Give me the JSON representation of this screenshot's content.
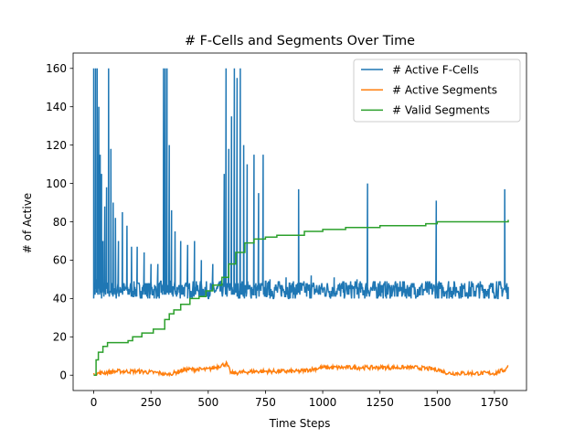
{
  "chart_data": {
    "type": "line",
    "title": "# F-Cells and Segments Over Time",
    "xlabel": "Time Steps",
    "ylabel": "# of Active",
    "xlim": [
      -90,
      1890
    ],
    "ylim": [
      -8,
      168
    ],
    "xticks": [
      0,
      250,
      500,
      750,
      1000,
      1250,
      1500,
      1750
    ],
    "yticks": [
      0,
      20,
      40,
      60,
      80,
      100,
      120,
      140,
      160
    ],
    "legend_position": "top-right",
    "grid": false,
    "series": [
      {
        "name": "# Active F-Cells",
        "color": "#1f77b4",
        "style": "dense oscillating band between 40 and 49 with frequent spikes",
        "base_range": [
          40,
          49
        ],
        "spikes": [
          [
            0,
            160
          ],
          [
            5,
            45
          ],
          [
            8,
            160
          ],
          [
            12,
            50
          ],
          [
            15,
            160
          ],
          [
            18,
            42
          ],
          [
            22,
            140
          ],
          [
            25,
            45
          ],
          [
            28,
            115
          ],
          [
            31,
            44
          ],
          [
            34,
            105
          ],
          [
            37,
            43
          ],
          [
            40,
            70
          ],
          [
            44,
            48
          ],
          [
            48,
            88
          ],
          [
            52,
            42
          ],
          [
            56,
            98
          ],
          [
            60,
            46
          ],
          [
            65,
            160
          ],
          [
            70,
            44
          ],
          [
            75,
            118
          ],
          [
            80,
            42
          ],
          [
            85,
            90
          ],
          [
            90,
            45
          ],
          [
            95,
            82
          ],
          [
            100,
            43
          ],
          [
            108,
            70
          ],
          [
            115,
            46
          ],
          [
            125,
            85
          ],
          [
            135,
            44
          ],
          [
            145,
            78
          ],
          [
            155,
            42
          ],
          [
            165,
            67
          ],
          [
            175,
            45
          ],
          [
            190,
            67
          ],
          [
            205,
            44
          ],
          [
            220,
            64
          ],
          [
            235,
            48
          ],
          [
            250,
            58
          ],
          [
            260,
            44
          ],
          [
            280,
            58
          ],
          [
            295,
            43
          ],
          [
            305,
            160
          ],
          [
            308,
            46
          ],
          [
            312,
            160
          ],
          [
            315,
            42
          ],
          [
            320,
            160
          ],
          [
            325,
            45
          ],
          [
            330,
            120
          ],
          [
            335,
            43
          ],
          [
            340,
            86
          ],
          [
            345,
            46
          ],
          [
            355,
            75
          ],
          [
            365,
            42
          ],
          [
            380,
            70
          ],
          [
            390,
            45
          ],
          [
            410,
            68
          ],
          [
            425,
            44
          ],
          [
            440,
            70
          ],
          [
            455,
            45
          ],
          [
            470,
            60
          ],
          [
            490,
            44
          ],
          [
            520,
            58
          ],
          [
            540,
            45
          ],
          [
            570,
            105
          ],
          [
            578,
            160
          ],
          [
            583,
            43
          ],
          [
            590,
            118
          ],
          [
            596,
            45
          ],
          [
            602,
            135
          ],
          [
            608,
            42
          ],
          [
            614,
            160
          ],
          [
            620,
            44
          ],
          [
            626,
            155
          ],
          [
            632,
            43
          ],
          [
            640,
            160
          ],
          [
            646,
            46
          ],
          [
            655,
            120
          ],
          [
            662,
            43
          ],
          [
            670,
            110
          ],
          [
            680,
            45
          ],
          [
            700,
            115
          ],
          [
            705,
            42
          ],
          [
            720,
            95
          ],
          [
            730,
            44
          ],
          [
            740,
            115
          ],
          [
            748,
            43
          ],
          [
            770,
            50
          ],
          [
            800,
            44
          ],
          [
            840,
            51
          ],
          [
            870,
            43
          ],
          [
            895,
            97
          ],
          [
            900,
            44
          ],
          [
            950,
            52
          ],
          [
            1000,
            44
          ],
          [
            1050,
            51
          ],
          [
            1100,
            45
          ],
          [
            1150,
            50
          ],
          [
            1196,
            100
          ],
          [
            1200,
            44
          ],
          [
            1250,
            49
          ],
          [
            1300,
            45
          ],
          [
            1350,
            49
          ],
          [
            1400,
            44
          ],
          [
            1450,
            49
          ],
          [
            1496,
            91
          ],
          [
            1500,
            45
          ],
          [
            1550,
            49
          ],
          [
            1600,
            44
          ],
          [
            1650,
            49
          ],
          [
            1700,
            44
          ],
          [
            1760,
            49
          ],
          [
            1795,
            97
          ],
          [
            1800,
            44
          ],
          [
            1810,
            40
          ]
        ]
      },
      {
        "name": "# Active Segments",
        "color": "#ff7f0e",
        "style": "low noisy band",
        "points": [
          [
            0,
            0
          ],
          [
            20,
            1
          ],
          [
            100,
            2
          ],
          [
            200,
            2
          ],
          [
            300,
            1
          ],
          [
            320,
            0
          ],
          [
            400,
            3
          ],
          [
            500,
            3
          ],
          [
            580,
            6
          ],
          [
            600,
            1
          ],
          [
            700,
            2
          ],
          [
            800,
            2
          ],
          [
            900,
            2
          ],
          [
            1000,
            4
          ],
          [
            1100,
            4
          ],
          [
            1200,
            4
          ],
          [
            1300,
            4
          ],
          [
            1400,
            4
          ],
          [
            1500,
            3
          ],
          [
            1550,
            1
          ],
          [
            1650,
            1
          ],
          [
            1750,
            1
          ],
          [
            1800,
            3
          ],
          [
            1810,
            6
          ]
        ]
      },
      {
        "name": "# Valid Segments",
        "color": "#2ca02c",
        "style": "monotonic step line",
        "points": [
          [
            0,
            0
          ],
          [
            10,
            8
          ],
          [
            20,
            12
          ],
          [
            40,
            15
          ],
          [
            60,
            17
          ],
          [
            90,
            17
          ],
          [
            150,
            18
          ],
          [
            170,
            20
          ],
          [
            210,
            22
          ],
          [
            260,
            24
          ],
          [
            300,
            24
          ],
          [
            310,
            29
          ],
          [
            330,
            32
          ],
          [
            350,
            34
          ],
          [
            380,
            37
          ],
          [
            420,
            40
          ],
          [
            460,
            41
          ],
          [
            490,
            44
          ],
          [
            520,
            47
          ],
          [
            560,
            51
          ],
          [
            590,
            58
          ],
          [
            620,
            64
          ],
          [
            660,
            69
          ],
          [
            700,
            71
          ],
          [
            750,
            72
          ],
          [
            800,
            73
          ],
          [
            880,
            73
          ],
          [
            920,
            75
          ],
          [
            1000,
            76
          ],
          [
            1100,
            77
          ],
          [
            1200,
            77
          ],
          [
            1250,
            78
          ],
          [
            1350,
            78
          ],
          [
            1450,
            79
          ],
          [
            1500,
            80
          ],
          [
            1600,
            80
          ],
          [
            1700,
            80
          ],
          [
            1810,
            81
          ]
        ]
      }
    ]
  }
}
